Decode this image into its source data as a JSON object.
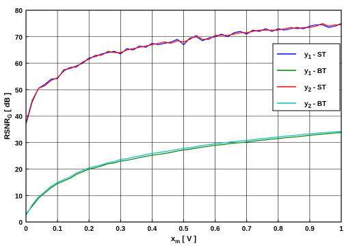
{
  "chart_data": {
    "type": "line",
    "xlabel": {
      "base": "x",
      "sub": "m",
      "rest": " [ V ]"
    },
    "ylabel": {
      "base": "RSNR",
      "sub": "G",
      "rest": " [ dB ]"
    },
    "xlim": [
      0,
      1
    ],
    "ylim": [
      0,
      80
    ],
    "x_ticks": [
      {
        "v": 0,
        "label": "0"
      },
      {
        "v": 0.1,
        "label": "0.1"
      },
      {
        "v": 0.2,
        "label": "0.2"
      },
      {
        "v": 0.3,
        "label": "0.3"
      },
      {
        "v": 0.4,
        "label": "0.4"
      },
      {
        "v": 0.5,
        "label": "0.5"
      },
      {
        "v": 0.6,
        "label": "0.6"
      },
      {
        "v": 0.7,
        "label": "0.7"
      },
      {
        "v": 0.8,
        "label": "0.8"
      },
      {
        "v": 0.9,
        "label": "0.9"
      },
      {
        "v": 1,
        "label": "1"
      }
    ],
    "y_ticks": [
      {
        "v": 0,
        "label": "0"
      },
      {
        "v": 10,
        "label": "10"
      },
      {
        "v": 20,
        "label": "20"
      },
      {
        "v": 30,
        "label": "30"
      },
      {
        "v": 40,
        "label": "40"
      },
      {
        "v": 50,
        "label": "50"
      },
      {
        "v": 60,
        "label": "60"
      },
      {
        "v": 70,
        "label": "70"
      },
      {
        "v": 80,
        "label": "80"
      }
    ],
    "grid": true,
    "legend_position": "upper-right",
    "series": [
      {
        "label": {
          "base": "y",
          "sub": "1",
          "rest": " - ST"
        },
        "color": "#0000ff",
        "x": [
          0,
          0.02,
          0.04,
          0.06,
          0.08,
          0.1,
          0.12,
          0.14,
          0.16,
          0.18,
          0.2,
          0.22,
          0.24,
          0.26,
          0.28,
          0.3,
          0.32,
          0.34,
          0.36,
          0.38,
          0.4,
          0.42,
          0.44,
          0.46,
          0.48,
          0.5,
          0.52,
          0.54,
          0.56,
          0.58,
          0.6,
          0.62,
          0.64,
          0.66,
          0.68,
          0.7,
          0.72,
          0.74,
          0.76,
          0.78,
          0.8,
          0.82,
          0.84,
          0.86,
          0.88,
          0.9,
          0.92,
          0.94,
          0.96,
          0.98,
          1
        ],
        "y": [
          37,
          45.5,
          50.5,
          52,
          54,
          54.2,
          57.5,
          58,
          59,
          60,
          62,
          62.5,
          63.5,
          64,
          64.5,
          63.5,
          65.5,
          65,
          66.5,
          66,
          67.5,
          67,
          67.5,
          68,
          69,
          67,
          69.5,
          70,
          68.5,
          69.5,
          70,
          71,
          70,
          71.5,
          72,
          71,
          72.5,
          72,
          73,
          72,
          73,
          72.5,
          73,
          73.5,
          73,
          74,
          74.5,
          74.5,
          73.5,
          74,
          75
        ]
      },
      {
        "label": {
          "base": "y",
          "sub": "1",
          "rest": " - BT"
        },
        "color": "#008000",
        "x": [
          0,
          0.02,
          0.04,
          0.06,
          0.08,
          0.1,
          0.12,
          0.14,
          0.16,
          0.18,
          0.2,
          0.22,
          0.24,
          0.26,
          0.28,
          0.3,
          0.32,
          0.34,
          0.36,
          0.38,
          0.4,
          0.42,
          0.44,
          0.46,
          0.48,
          0.5,
          0.52,
          0.54,
          0.56,
          0.58,
          0.6,
          0.62,
          0.64,
          0.66,
          0.68,
          0.7,
          0.72,
          0.74,
          0.76,
          0.78,
          0.8,
          0.82,
          0.84,
          0.86,
          0.88,
          0.9,
          0.92,
          0.94,
          0.96,
          0.98,
          1
        ],
        "y": [
          3,
          6,
          9,
          11,
          13,
          14.5,
          15.5,
          16.5,
          18,
          19,
          20,
          20.5,
          21.2,
          22,
          22.3,
          23,
          23.3,
          23.8,
          24.3,
          24.8,
          25.2,
          25.5,
          25.9,
          26.3,
          26.8,
          27.2,
          27.5,
          27.9,
          28.3,
          28.6,
          29,
          29.2,
          29.5,
          29.8,
          30,
          30.2,
          30.5,
          30.8,
          31,
          31.3,
          31.5,
          31.8,
          32,
          32.2,
          32.5,
          32.7,
          33,
          33.2,
          33.4,
          33.6,
          33.8
        ]
      },
      {
        "label": {
          "base": "y",
          "sub": "2",
          "rest": " - ST"
        },
        "color": "#ff0000",
        "x": [
          0,
          0.02,
          0.04,
          0.06,
          0.08,
          0.1,
          0.12,
          0.14,
          0.16,
          0.18,
          0.2,
          0.22,
          0.24,
          0.26,
          0.28,
          0.3,
          0.32,
          0.34,
          0.36,
          0.38,
          0.4,
          0.42,
          0.44,
          0.46,
          0.48,
          0.5,
          0.52,
          0.54,
          0.56,
          0.58,
          0.6,
          0.62,
          0.64,
          0.66,
          0.68,
          0.7,
          0.72,
          0.74,
          0.76,
          0.78,
          0.8,
          0.82,
          0.84,
          0.86,
          0.88,
          0.9,
          0.92,
          0.94,
          0.96,
          0.98,
          1
        ],
        "y": [
          37.5,
          46,
          50.5,
          51.5,
          53.5,
          54.5,
          57,
          58.5,
          58.5,
          60.5,
          61.5,
          63,
          63,
          64.5,
          64,
          64,
          65,
          65.5,
          66,
          66.5,
          67,
          67.5,
          68,
          67.5,
          68.5,
          68,
          69,
          70.5,
          69,
          69,
          70.5,
          70.5,
          70.5,
          71,
          71.5,
          71.5,
          72,
          72.5,
          72.5,
          72.5,
          72.5,
          73,
          73.5,
          73,
          73.5,
          73.5,
          74,
          75,
          74,
          74.5,
          74.5
        ]
      },
      {
        "label": {
          "base": "y",
          "sub": "2",
          "rest": " - BT"
        },
        "color": "#00c0c0",
        "x": [
          0,
          0.02,
          0.04,
          0.06,
          0.08,
          0.1,
          0.12,
          0.14,
          0.16,
          0.18,
          0.2,
          0.22,
          0.24,
          0.26,
          0.28,
          0.3,
          0.32,
          0.34,
          0.36,
          0.38,
          0.4,
          0.42,
          0.44,
          0.46,
          0.48,
          0.5,
          0.52,
          0.54,
          0.56,
          0.58,
          0.6,
          0.62,
          0.64,
          0.66,
          0.68,
          0.7,
          0.72,
          0.74,
          0.76,
          0.78,
          0.8,
          0.82,
          0.84,
          0.86,
          0.88,
          0.9,
          0.92,
          0.94,
          0.96,
          0.98,
          1
        ],
        "y": [
          2.5,
          6.5,
          9.5,
          11.5,
          13.5,
          15,
          16,
          17,
          18.5,
          19.5,
          20.5,
          21,
          21.6,
          22.4,
          22.8,
          23.6,
          23.9,
          24.5,
          24.9,
          25.5,
          25.9,
          26.2,
          26.6,
          27,
          27.4,
          27.8,
          28.1,
          28.5,
          28.9,
          29.2,
          29.6,
          29.8,
          30.1,
          30.4,
          30.6,
          30.8,
          31.1,
          31.4,
          31.6,
          31.9,
          32.1,
          32.4,
          32.6,
          32.8,
          33.1,
          33.3,
          33.5,
          33.7,
          33.9,
          34.1,
          34.2
        ]
      }
    ]
  }
}
